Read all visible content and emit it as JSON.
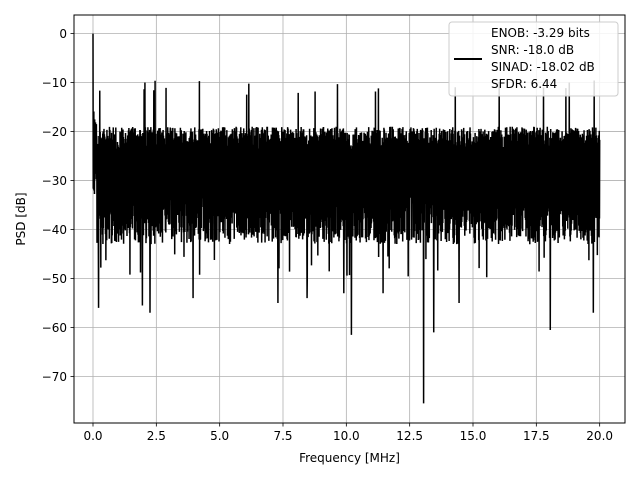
{
  "chart_data": {
    "type": "line",
    "title": "",
    "xlabel": "Frequency [MHz]",
    "ylabel": "PSD [dB]",
    "xlim": [
      -0.75,
      21.0
    ],
    "ylim": [
      -79.5,
      3.8
    ],
    "xticks": [
      0.0,
      2.5,
      5.0,
      7.5,
      10.0,
      12.5,
      15.0,
      17.5,
      20.0
    ],
    "xtick_labels": [
      "0.0",
      "2.5",
      "5.0",
      "7.5",
      "10.0",
      "12.5",
      "15.0",
      "17.5",
      "20.0"
    ],
    "yticks": [
      0,
      -10,
      -20,
      -30,
      -40,
      -50,
      -60,
      -70
    ],
    "ytick_labels": [
      "0",
      "−10",
      "−20",
      "−30",
      "−40",
      "−50",
      "−60",
      "−70"
    ],
    "grid": true,
    "legend_position": "top-right",
    "series": [
      {
        "color": "#000000",
        "x_range": [
          0.0,
          20.0
        ],
        "peak": {
          "x": 0.0,
          "y": 0.0
        },
        "band": {
          "upper_typical": -18,
          "upper_max": -12.5,
          "lower_typical": -45,
          "lower_min": -75.5
        },
        "deep_notches": [
          {
            "x": 0.22,
            "y": -56
          },
          {
            "x": 1.95,
            "y": -55.5
          },
          {
            "x": 2.25,
            "y": -57
          },
          {
            "x": 3.95,
            "y": -54
          },
          {
            "x": 7.3,
            "y": -55
          },
          {
            "x": 8.45,
            "y": -54
          },
          {
            "x": 9.9,
            "y": -53
          },
          {
            "x": 10.2,
            "y": -61.5
          },
          {
            "x": 11.45,
            "y": -53
          },
          {
            "x": 13.05,
            "y": -75.5
          },
          {
            "x": 13.45,
            "y": -61
          },
          {
            "x": 14.45,
            "y": -55
          },
          {
            "x": 18.05,
            "y": -60.5
          },
          {
            "x": 19.75,
            "y": -57
          }
        ]
      }
    ],
    "legend_lines": [
      "ENOB: -3.29 bits",
      "SNR: -18.0 dB",
      "SINAD: -18.02 dB",
      "SFDR: 6.44"
    ]
  }
}
